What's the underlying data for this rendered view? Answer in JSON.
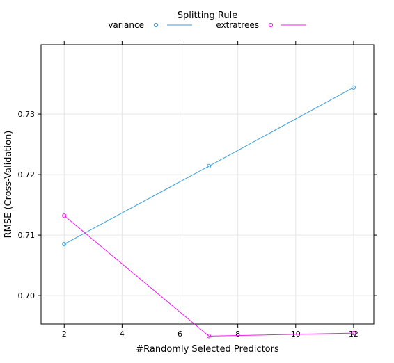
{
  "chart_data": {
    "type": "line",
    "title": "",
    "xlabel": "#Randomly Selected Predictors",
    "ylabel": "RMSE (Cross-Validation)",
    "legend_title": "Splitting Rule",
    "legend_position": "top",
    "grid": true,
    "xlim": [
      1.2,
      12.7
    ],
    "ylim": [
      0.6953,
      0.7415
    ],
    "x_ticks": [
      2,
      4,
      6,
      8,
      10,
      12
    ],
    "y_ticks": [
      0.7,
      0.71,
      0.72,
      0.73
    ],
    "x_tick_labels": [
      "2",
      "4",
      "6",
      "8",
      "10",
      "12"
    ],
    "y_tick_labels": [
      "0.70",
      "0.71",
      "0.72",
      "0.73"
    ],
    "series": [
      {
        "name": "variance",
        "color": "#3a9ddb",
        "marker": "circle",
        "x": [
          2,
          7,
          12
        ],
        "y": [
          0.7085,
          0.7214,
          0.7344
        ]
      },
      {
        "name": "extratrees",
        "color": "#f018f0",
        "marker": "circle",
        "x": [
          2,
          7,
          12
        ],
        "y": [
          0.7132,
          0.6933,
          0.6938
        ]
      }
    ]
  }
}
